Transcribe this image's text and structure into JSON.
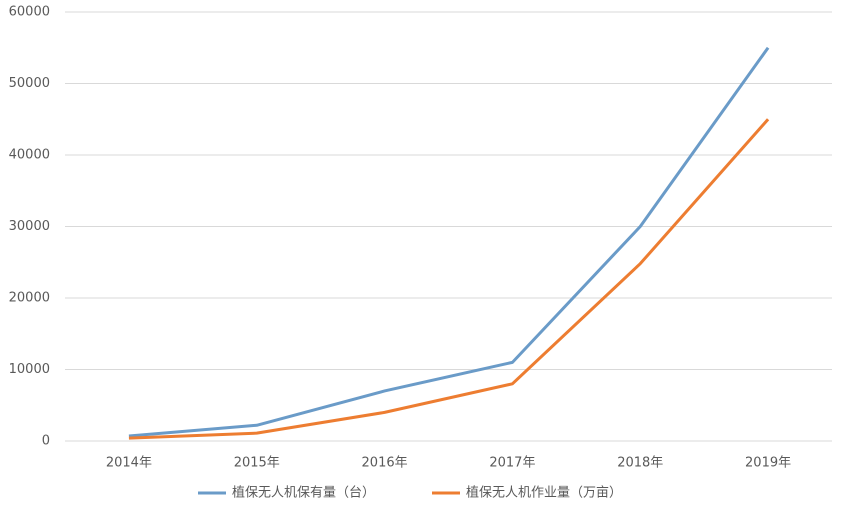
{
  "chart_data": {
    "type": "line",
    "categories": [
      "2014年",
      "2015年",
      "2016年",
      "2017年",
      "2018年",
      "2019年"
    ],
    "series": [
      {
        "name": "植保无人机保有量（台）",
        "color": "#6a9bc8",
        "values": [
          700,
          2200,
          7000,
          11000,
          30000,
          55000
        ]
      },
      {
        "name": "植保无人机作业量（万亩）",
        "color": "#ed7d31",
        "values": [
          400,
          1100,
          4000,
          8000,
          24800,
          45000
        ]
      }
    ],
    "ylim": [
      0,
      60000
    ],
    "yticks": [
      0,
      10000,
      20000,
      30000,
      40000,
      50000,
      60000
    ],
    "grid": true,
    "legend": "bottom"
  }
}
